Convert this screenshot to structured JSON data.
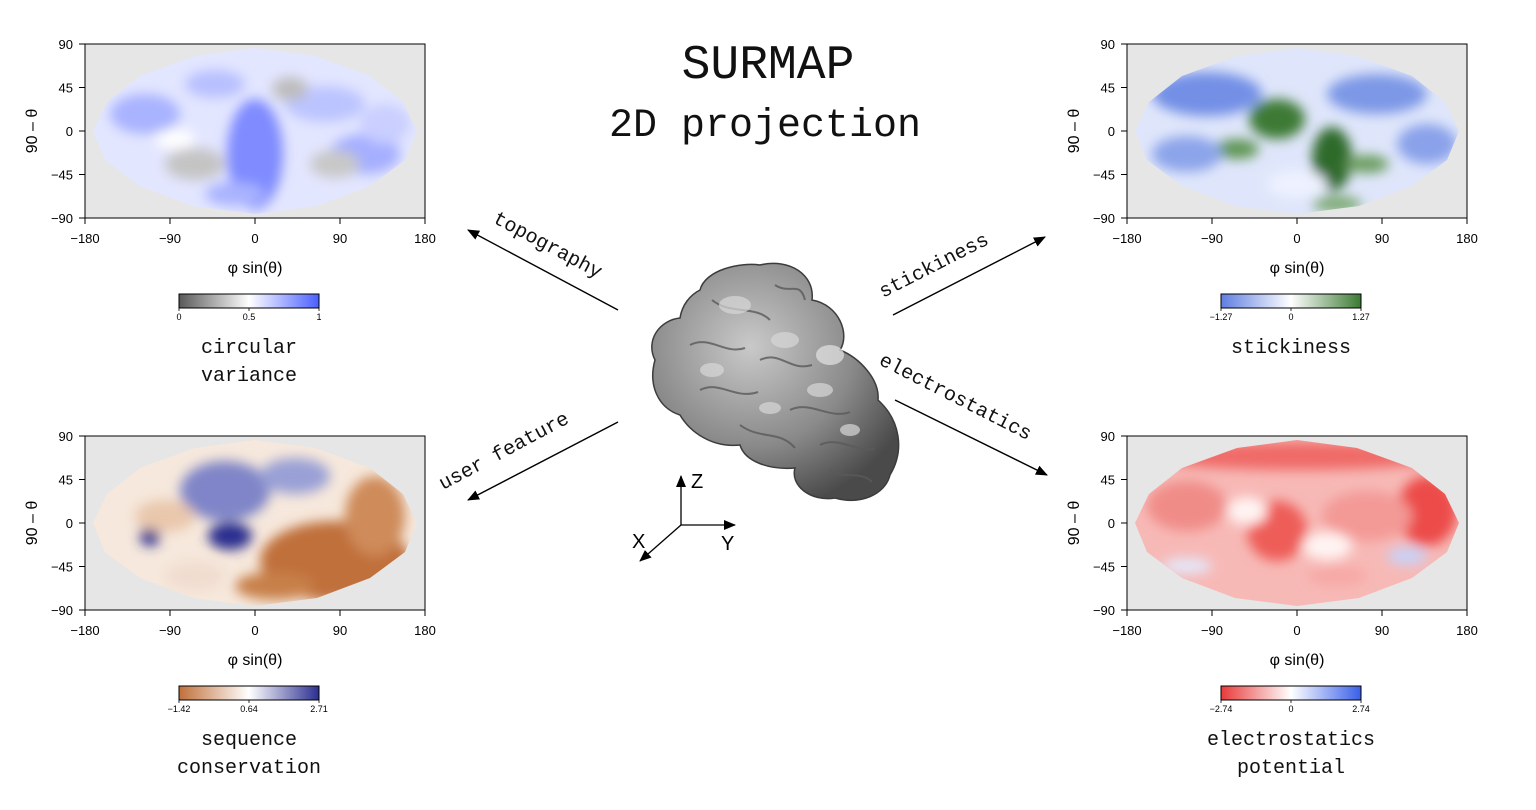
{
  "title": {
    "line1": "SURMAP",
    "line2": "2D projection"
  },
  "arrows": {
    "topography": "topography",
    "stickiness": "stickiness",
    "user_feature": "user feature",
    "electrostatics": "electrostatics"
  },
  "axes_triad": {
    "z": "Z",
    "x": "X",
    "y": "Y"
  },
  "protein": {
    "icon": "protein-surface-icon"
  },
  "maps": [
    {
      "id": "topography",
      "ylabel": "90 – θ",
      "xlabel": "φ sin(θ)",
      "yticks": [
        "90",
        "45",
        "0",
        "-45",
        "-90"
      ],
      "xticks": [
        "-180",
        "-90",
        "0",
        "90",
        "180"
      ],
      "colorbar": {
        "ticks": [
          "0",
          "0.5",
          "1"
        ],
        "colors": [
          "#595959",
          "#ffffff",
          "#4a5fff"
        ]
      },
      "caption": [
        "circular",
        "variance"
      ]
    },
    {
      "id": "stickiness",
      "ylabel": "90 – θ",
      "xlabel": "φ sin(θ)",
      "yticks": [
        "90",
        "45",
        "0",
        "-45",
        "-90"
      ],
      "xticks": [
        "-180",
        "-90",
        "0",
        "90",
        "180"
      ],
      "colorbar": {
        "ticks": [
          "-1.27",
          "0",
          "1.27"
        ],
        "colors": [
          "#5f7ee0",
          "#ffffff",
          "#3b7a34"
        ]
      },
      "caption": [
        "stickiness"
      ]
    },
    {
      "id": "conservation",
      "ylabel": "90 – θ",
      "xlabel": "φ sin(θ)",
      "yticks": [
        "90",
        "45",
        "0",
        "-45",
        "-90"
      ],
      "xticks": [
        "-180",
        "-90",
        "0",
        "90",
        "180"
      ],
      "colorbar": {
        "ticks": [
          "-1.42",
          "0.64",
          "2.71"
        ],
        "colors": [
          "#c0703a",
          "#ffffff",
          "#2b2f8f"
        ]
      },
      "caption": [
        "sequence",
        "conservation"
      ]
    },
    {
      "id": "electrostatics",
      "ylabel": "90 – θ",
      "xlabel": "φ sin(θ)",
      "yticks": [
        "90",
        "45",
        "0",
        "-45",
        "-90"
      ],
      "xticks": [
        "-180",
        "-90",
        "0",
        "90",
        "180"
      ],
      "colorbar": {
        "ticks": [
          "-2.74",
          "0",
          "2.74"
        ],
        "colors": [
          "#e83a3a",
          "#ffffff",
          "#3a5fe8"
        ]
      },
      "caption": [
        "electrostatics",
        "potential"
      ]
    }
  ]
}
